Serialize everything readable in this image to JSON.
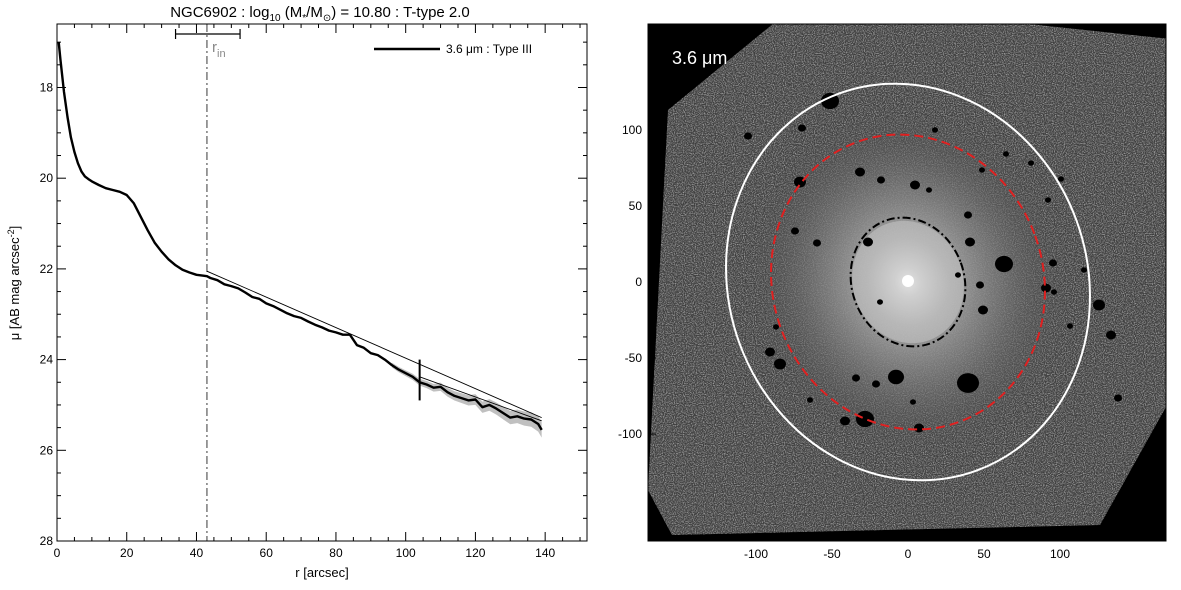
{
  "chart_data": [
    {
      "type": "line",
      "title": {
        "prefix": "NGC6902 : log",
        "sub1": "10",
        "mid": " (M",
        "sub2": "*",
        "mid2": "/M",
        "sub3": "⊙",
        "suffix": ") = 10.80 : T-type 2.0"
      },
      "xlabel": "r [arcsec]",
      "ylabel": {
        "main": "μ [AB mag arcsec",
        "sup": "-2",
        "close": "]"
      },
      "xlim": [
        0,
        152
      ],
      "ylim": [
        28,
        16.6
      ],
      "y_inverted": true,
      "x_ticks": [
        0,
        20,
        40,
        60,
        80,
        100,
        120,
        140
      ],
      "x_tick_labels": [
        "0",
        "20",
        "40",
        "60",
        "80",
        "100",
        "120",
        "140"
      ],
      "y_ticks": [
        18,
        20,
        22,
        24,
        26,
        28
      ],
      "y_tick_labels": [
        "18",
        "20",
        "22",
        "24",
        "26",
        "28"
      ],
      "legend": {
        "label": "3.6 μm : Type III",
        "placement": "top-right"
      },
      "annotation": {
        "text": "r",
        "sub": "in",
        "x": 43
      },
      "rin_range": [
        34,
        52.5
      ],
      "break_radius": 104,
      "series": [
        {
          "name": "3.6 μm : Type III",
          "x": [
            0.5,
            1,
            2,
            3,
            4,
            5,
            6,
            7,
            8,
            9,
            10,
            12,
            14,
            16,
            18,
            20,
            22,
            24,
            26,
            28,
            30,
            32,
            34,
            36,
            38,
            40,
            42,
            43,
            44,
            46,
            48,
            50,
            52,
            54,
            56,
            58,
            60,
            62,
            64,
            66,
            68,
            70,
            72,
            74,
            76,
            78,
            80,
            82,
            84,
            86,
            88,
            90,
            92,
            94,
            96,
            98,
            100,
            102,
            104,
            106,
            108,
            110,
            112,
            114,
            116,
            118,
            120,
            122,
            124,
            126,
            128,
            130,
            132,
            134,
            136,
            138,
            139
          ],
          "y": [
            17.0,
            17.4,
            18.1,
            18.65,
            19.1,
            19.42,
            19.67,
            19.85,
            19.96,
            20.02,
            20.07,
            20.15,
            20.22,
            20.26,
            20.3,
            20.37,
            20.55,
            20.85,
            21.15,
            21.42,
            21.62,
            21.79,
            21.92,
            22.02,
            22.08,
            22.13,
            22.15,
            22.16,
            22.2,
            22.25,
            22.34,
            22.38,
            22.43,
            22.52,
            22.62,
            22.66,
            22.76,
            22.82,
            22.9,
            22.98,
            23.04,
            23.08,
            23.16,
            23.23,
            23.29,
            23.36,
            23.4,
            23.45,
            23.45,
            23.68,
            23.74,
            23.86,
            23.9,
            24.0,
            24.12,
            24.22,
            24.3,
            24.38,
            24.5,
            24.55,
            24.62,
            24.6,
            24.72,
            24.8,
            24.85,
            24.9,
            24.88,
            25.05,
            25.0,
            25.08,
            25.18,
            25.28,
            25.25,
            25.3,
            25.32,
            25.42,
            25.55
          ]
        },
        {
          "name": "",
          "x": [
            43,
            139
          ],
          "y": [
            22.05,
            25.28
          ]
        },
        {
          "name": "",
          "x": [
            104,
            139
          ],
          "y": [
            24.38,
            25.35
          ]
        }
      ]
    },
    {
      "type": "image",
      "panel_label": "3.6 μm",
      "x_ticks": [
        -100,
        -50,
        0,
        50,
        100
      ],
      "x_tick_labels": [
        "-100",
        "-50",
        "0",
        "50",
        "100"
      ],
      "y_ticks": [
        100,
        50,
        0,
        -50,
        -100
      ],
      "y_tick_labels": [
        "100",
        "50",
        "0",
        "-50",
        "-100"
      ],
      "xlim": [
        -170,
        170
      ],
      "ylim": [
        -170,
        170
      ],
      "ellipses": [
        {
          "name": "outer",
          "color": "#ffffff",
          "style": "solid",
          "cx": 0,
          "cy": 0,
          "rx": 118,
          "ry": 132,
          "angle": -20
        },
        {
          "name": "break",
          "color": "#e02020",
          "style": "dashed",
          "cx": 0,
          "cy": 0,
          "rx": 89,
          "ry": 98,
          "angle": -20
        },
        {
          "name": "inner",
          "color": "#000000",
          "style": "dashdot",
          "cx": 0,
          "cy": 0,
          "rx": 37,
          "ry": 43,
          "angle": -20
        }
      ]
    }
  ]
}
